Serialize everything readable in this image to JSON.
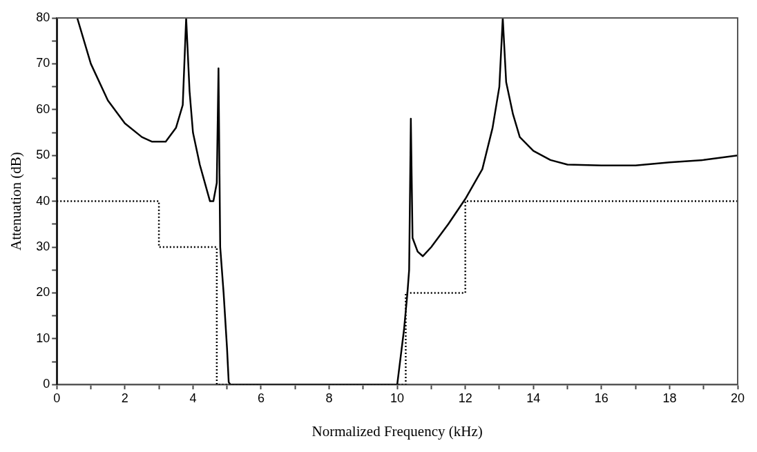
{
  "chart_data": {
    "type": "line",
    "xlabel": "Normalized Frequency (kHz)",
    "ylabel": "Attenuation (dB)",
    "xlim": [
      0,
      20
    ],
    "ylim": [
      0,
      80
    ],
    "xticks": [
      0,
      {
        "value": 1,
        "label": null
      },
      2,
      {
        "value": 3,
        "label": null
      },
      4,
      {
        "value": 5,
        "label": null
      },
      6,
      {
        "value": 7,
        "label": null
      },
      8,
      {
        "value": 9,
        "label": null
      },
      10,
      {
        "value": 11,
        "label": null
      },
      12,
      {
        "value": 13,
        "label": null
      },
      14,
      {
        "value": 15,
        "label": null
      },
      16,
      {
        "value": 17,
        "label": null
      },
      18,
      {
        "value": 19,
        "label": null
      },
      20
    ],
    "yticks": [
      0,
      {
        "value": 5,
        "label": null
      },
      10,
      {
        "value": 15,
        "label": null
      },
      20,
      {
        "value": 25,
        "label": null
      },
      30,
      {
        "value": 35,
        "label": null
      },
      40,
      {
        "value": 45,
        "label": null
      },
      50,
      {
        "value": 55,
        "label": null
      },
      60,
      {
        "value": 65,
        "label": null
      },
      70,
      {
        "value": 75,
        "label": null
      },
      80
    ],
    "grid": false,
    "legend": false,
    "marker": "none",
    "series": [
      {
        "type": "line",
        "color": "#000000",
        "line_style": "solid",
        "x": [
          0.6,
          1,
          1.5,
          2,
          2.5,
          2.8,
          3.2,
          3.5,
          3.7,
          3.8,
          3.9,
          4.0,
          4.2,
          4.5,
          4.6,
          4.7,
          4.75,
          4.8,
          4.9,
          5.0,
          5.05,
          5.1,
          10.0,
          10.2,
          10.3,
          10.35,
          10.4,
          10.45,
          10.6,
          10.75,
          11,
          11.5,
          12,
          12.5,
          12.8,
          13.0,
          13.1,
          13.2,
          13.4,
          13.6,
          14,
          14.5,
          15,
          16,
          17,
          18,
          19,
          20
        ],
        "values": [
          80,
          70,
          62,
          57,
          54,
          53,
          53,
          56,
          61,
          80,
          64,
          55,
          48,
          40,
          40,
          44,
          69,
          30,
          20,
          8,
          0.5,
          0,
          0,
          12,
          20,
          25,
          58,
          32,
          29,
          28,
          30,
          35,
          40.5,
          47,
          56,
          65,
          80,
          66,
          59,
          54,
          51,
          49,
          48,
          47.8,
          47.8,
          48.5,
          49,
          50
        ]
      },
      {
        "type": "line",
        "color": "#000000",
        "line_style": "dotted",
        "x": [
          0,
          3,
          3,
          4.7,
          4.7,
          6,
          7,
          8,
          10.25,
          10.25,
          12,
          12,
          20
        ],
        "values": [
          40,
          40,
          30,
          30,
          0,
          0,
          null,
          0,
          0,
          20,
          20,
          40,
          40
        ]
      }
    ]
  }
}
